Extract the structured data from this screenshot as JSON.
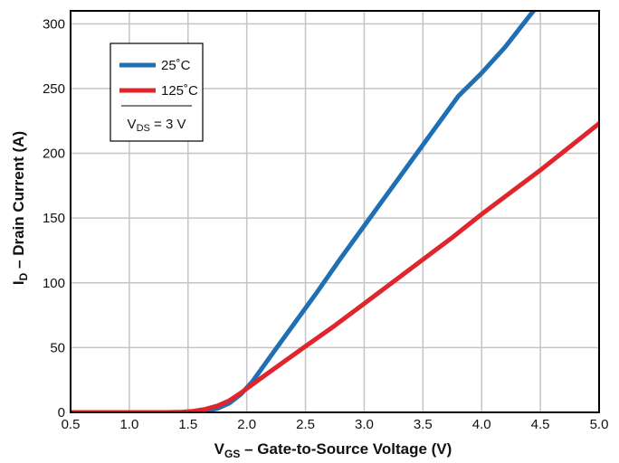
{
  "chart_data": {
    "type": "line",
    "title": "",
    "xlabel": {
      "main": "V",
      "sub": "GS",
      "rest": " – Gate-to-Source Voltage (V)"
    },
    "ylabel": {
      "main": "I",
      "sub": "D",
      "rest": " – Drain Current (A)"
    },
    "xlim": [
      0.5,
      5.0
    ],
    "ylim": [
      0,
      310
    ],
    "xticks": [
      "0.5",
      "1.0",
      "1.5",
      "2.0",
      "2.5",
      "3.0",
      "3.5",
      "4.0",
      "4.5",
      "5.0"
    ],
    "yticks": [
      "0",
      "50",
      "100",
      "150",
      "200",
      "250",
      "300"
    ],
    "grid": true,
    "legend_position": "top-left",
    "legend_condition": {
      "main": "V",
      "sub": "DS",
      "rest": " = 3 V"
    },
    "series": [
      {
        "name": "25˚C",
        "color": "#1f6fb4",
        "points": [
          [
            0.5,
            0
          ],
          [
            1.0,
            0
          ],
          [
            1.4,
            0
          ],
          [
            1.55,
            0.3
          ],
          [
            1.65,
            1
          ],
          [
            1.75,
            3
          ],
          [
            1.85,
            7
          ],
          [
            1.95,
            14
          ],
          [
            2.05,
            24
          ],
          [
            2.2,
            43
          ],
          [
            2.4,
            68
          ],
          [
            2.6,
            93
          ],
          [
            2.8,
            119
          ],
          [
            3.0,
            144
          ],
          [
            3.2,
            169
          ],
          [
            3.4,
            194
          ],
          [
            3.6,
            219
          ],
          [
            3.8,
            244
          ],
          [
            4.0,
            262
          ],
          [
            4.2,
            282
          ],
          [
            4.45,
            311
          ]
        ]
      },
      {
        "name": "125˚C",
        "color": "#e0262d",
        "points": [
          [
            0.5,
            0
          ],
          [
            1.0,
            0
          ],
          [
            1.3,
            0
          ],
          [
            1.45,
            0.3
          ],
          [
            1.55,
            1
          ],
          [
            1.65,
            2.5
          ],
          [
            1.75,
            5
          ],
          [
            1.85,
            9
          ],
          [
            1.95,
            15
          ],
          [
            2.1,
            25
          ],
          [
            2.3,
            38
          ],
          [
            2.5,
            51
          ],
          [
            2.75,
            67
          ],
          [
            3.0,
            84
          ],
          [
            3.25,
            101
          ],
          [
            3.5,
            118
          ],
          [
            3.75,
            135
          ],
          [
            4.0,
            153
          ],
          [
            4.25,
            170
          ],
          [
            4.5,
            187
          ],
          [
            4.75,
            205
          ],
          [
            5.0,
            223
          ]
        ]
      }
    ]
  }
}
